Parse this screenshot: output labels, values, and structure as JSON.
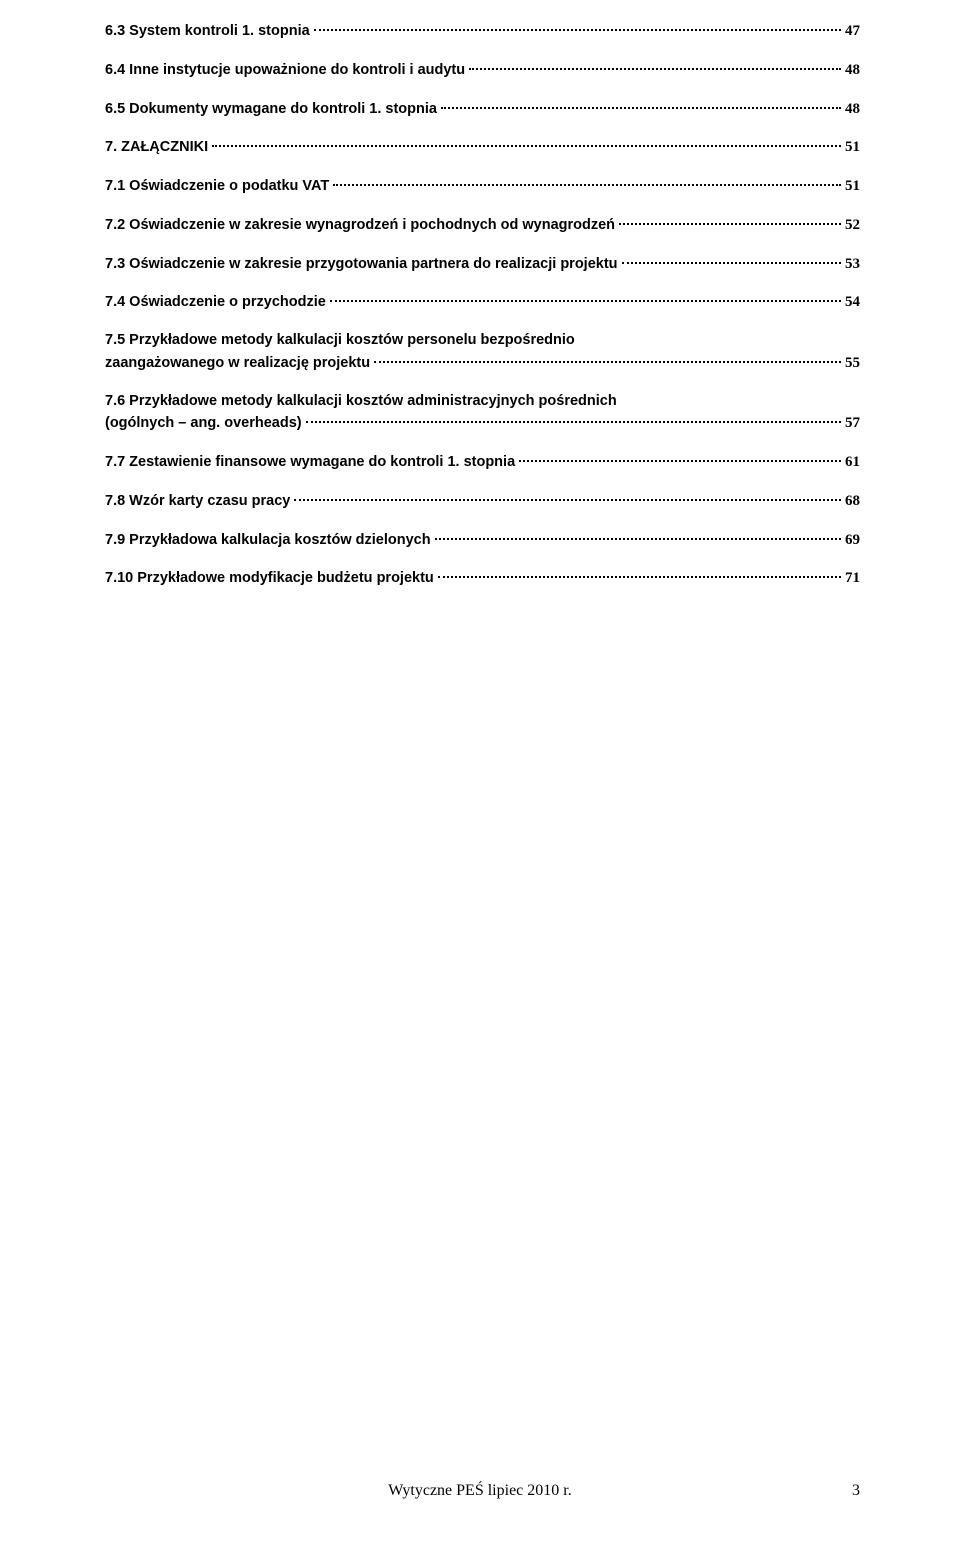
{
  "toc": [
    {
      "text": "6.3 System kontroli 1. stopnia",
      "page": "47"
    },
    {
      "text": "6.4 Inne instytucje upoważnione do kontroli i audytu",
      "page": "48"
    },
    {
      "text": "6.5 Dokumenty wymagane do kontroli 1. stopnia",
      "page": "48"
    },
    {
      "text": "7. ZAŁĄCZNIKI",
      "page": "51"
    },
    {
      "text": "7.1 Oświadczenie o podatku VAT",
      "page": "51"
    },
    {
      "text": "7.2 Oświadczenie w zakresie wynagrodzeń i pochodnych od wynagrodzeń",
      "page": "52"
    },
    {
      "text": "7.3 Oświadczenie w zakresie przygotowania partnera do realizacji projektu",
      "page": "53"
    },
    {
      "text": "7.4 Oświadczenie o przychodzie",
      "page": "54"
    },
    {
      "line1": "7.5 Przykładowe metody kalkulacji kosztów personelu bezpośrednio",
      "line2": "zaangażowanego w realizację projektu",
      "page": "55"
    },
    {
      "line1": "7.6 Przykładowe metody kalkulacji kosztów administracyjnych pośrednich",
      "line2": "(ogólnych – ang. overheads)",
      "page": "57"
    },
    {
      "text": "7.7 Zestawienie finansowe wymagane do kontroli 1. stopnia",
      "page": "61"
    },
    {
      "text": "7.8 Wzór karty czasu pracy",
      "page": "68"
    },
    {
      "text": "7.9 Przykładowa kalkulacja kosztów dzielonych",
      "page": "69"
    },
    {
      "text": "7.10 Przykładowe modyfikacje budżetu projektu",
      "page": "71"
    }
  ],
  "footer": "Wytyczne PEŚ lipiec 2010 r.",
  "page_number": "3"
}
